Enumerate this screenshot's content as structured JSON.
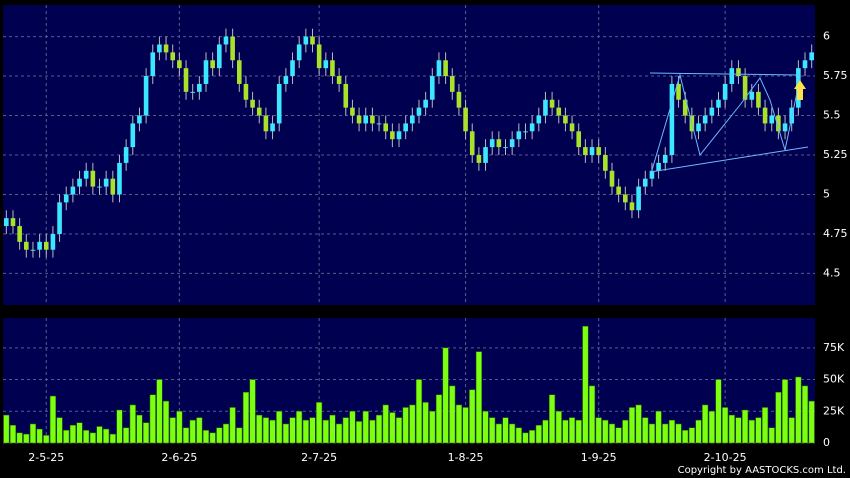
{
  "chart_data": [
    {
      "type": "candlestick",
      "up_color": "#3ce8ff",
      "down_color": "#a8e22a",
      "grid": true,
      "ylim": [
        4.3,
        6.2
      ],
      "yticks": [
        4.5,
        4.75,
        5,
        5.25,
        5.5,
        5.75,
        6
      ],
      "open": [
        4.8,
        4.85,
        4.8,
        4.7,
        4.65,
        4.65,
        4.7,
        4.65,
        4.75,
        4.95,
        5.0,
        5.05,
        5.1,
        5.15,
        5.05,
        5.05,
        5.1,
        5.0,
        5.2,
        5.3,
        5.45,
        5.5,
        5.75,
        5.9,
        5.95,
        5.9,
        5.85,
        5.8,
        5.65,
        5.65,
        5.7,
        5.85,
        5.8,
        5.95,
        6.0,
        5.85,
        5.7,
        5.6,
        5.55,
        5.5,
        5.4,
        5.45,
        5.7,
        5.75,
        5.85,
        5.95,
        6.0,
        5.95,
        5.8,
        5.85,
        5.75,
        5.7,
        5.55,
        5.5,
        5.45,
        5.5,
        5.45,
        5.45,
        5.4,
        5.35,
        5.4,
        5.45,
        5.5,
        5.55,
        5.6,
        5.75,
        5.85,
        5.75,
        5.65,
        5.55,
        5.4,
        5.25,
        5.2,
        5.3,
        5.35,
        5.3,
        5.3,
        5.35,
        5.4,
        5.4,
        5.45,
        5.5,
        5.6,
        5.55,
        5.5,
        5.45,
        5.4,
        5.3,
        5.25,
        5.3,
        5.25,
        5.15,
        5.05,
        5.0,
        4.95,
        4.9,
        5.05,
        5.1,
        5.15,
        5.2,
        5.25,
        5.7,
        5.6,
        5.5,
        5.4,
        5.45,
        5.5,
        5.55,
        5.6,
        5.7,
        5.8,
        5.75,
        5.6,
        5.65,
        5.55,
        5.45,
        5.5,
        5.4,
        5.45,
        5.55,
        5.8,
        5.85
      ],
      "high": [
        4.9,
        4.9,
        4.85,
        4.75,
        4.7,
        4.75,
        4.75,
        4.8,
        5.0,
        5.05,
        5.1,
        5.15,
        5.2,
        5.2,
        5.1,
        5.15,
        5.15,
        5.25,
        5.35,
        5.5,
        5.55,
        5.8,
        5.95,
        6.0,
        6.0,
        5.95,
        5.9,
        5.85,
        5.7,
        5.75,
        5.9,
        5.9,
        6.0,
        6.05,
        6.05,
        5.9,
        5.75,
        5.65,
        5.6,
        5.55,
        5.5,
        5.75,
        5.8,
        5.9,
        6.0,
        6.05,
        6.05,
        6.0,
        5.9,
        5.9,
        5.8,
        5.75,
        5.6,
        5.55,
        5.55,
        5.55,
        5.5,
        5.5,
        5.45,
        5.45,
        5.5,
        5.55,
        5.6,
        5.65,
        5.8,
        5.9,
        5.9,
        5.8,
        5.7,
        5.6,
        5.45,
        5.3,
        5.35,
        5.4,
        5.4,
        5.35,
        5.4,
        5.45,
        5.45,
        5.5,
        5.55,
        5.65,
        5.65,
        5.6,
        5.55,
        5.5,
        5.45,
        5.35,
        5.35,
        5.35,
        5.3,
        5.2,
        5.1,
        5.05,
        5.0,
        5.1,
        5.15,
        5.2,
        5.25,
        5.3,
        5.75,
        5.75,
        5.65,
        5.55,
        5.5,
        5.55,
        5.6,
        5.65,
        5.75,
        5.85,
        5.85,
        5.8,
        5.7,
        5.7,
        5.6,
        5.55,
        5.55,
        5.5,
        5.6,
        5.85,
        5.9,
        5.95
      ],
      "low": [
        4.75,
        4.75,
        4.65,
        4.6,
        4.6,
        4.6,
        4.6,
        4.6,
        4.7,
        4.9,
        4.95,
        5.0,
        5.05,
        5.0,
        5.0,
        5.0,
        4.95,
        4.95,
        5.15,
        5.25,
        5.4,
        5.45,
        5.7,
        5.85,
        5.85,
        5.8,
        5.75,
        5.6,
        5.6,
        5.6,
        5.65,
        5.75,
        5.75,
        5.9,
        5.8,
        5.65,
        5.55,
        5.5,
        5.45,
        5.35,
        5.35,
        5.4,
        5.65,
        5.7,
        5.8,
        5.9,
        5.9,
        5.75,
        5.75,
        5.7,
        5.65,
        5.5,
        5.45,
        5.4,
        5.4,
        5.4,
        5.4,
        5.35,
        5.3,
        5.3,
        5.35,
        5.4,
        5.45,
        5.5,
        5.55,
        5.7,
        5.7,
        5.6,
        5.5,
        5.35,
        5.2,
        5.15,
        5.15,
        5.25,
        5.25,
        5.25,
        5.25,
        5.3,
        5.35,
        5.35,
        5.4,
        5.45,
        5.5,
        5.45,
        5.4,
        5.35,
        5.25,
        5.2,
        5.2,
        5.2,
        5.1,
        5.0,
        4.95,
        4.9,
        4.85,
        4.85,
        5.0,
        5.05,
        5.1,
        5.15,
        5.2,
        5.55,
        5.45,
        5.35,
        5.35,
        5.4,
        5.45,
        5.5,
        5.55,
        5.65,
        5.7,
        5.55,
        5.55,
        5.5,
        5.4,
        5.4,
        5.35,
        5.35,
        5.4,
        5.5,
        5.75,
        5.8
      ],
      "close": [
        4.85,
        4.8,
        4.7,
        4.65,
        4.65,
        4.7,
        4.65,
        4.75,
        4.95,
        5.0,
        5.05,
        5.1,
        5.15,
        5.05,
        5.05,
        5.1,
        5.0,
        5.2,
        5.3,
        5.45,
        5.5,
        5.75,
        5.9,
        5.95,
        5.9,
        5.85,
        5.8,
        5.65,
        5.65,
        5.7,
        5.85,
        5.8,
        5.95,
        6.0,
        5.85,
        5.7,
        5.6,
        5.55,
        5.5,
        5.4,
        5.45,
        5.7,
        5.75,
        5.85,
        5.95,
        6.0,
        5.95,
        5.8,
        5.85,
        5.75,
        5.7,
        5.55,
        5.5,
        5.45,
        5.5,
        5.45,
        5.45,
        5.4,
        5.35,
        5.4,
        5.45,
        5.5,
        5.55,
        5.6,
        5.75,
        5.85,
        5.75,
        5.65,
        5.55,
        5.4,
        5.25,
        5.2,
        5.3,
        5.35,
        5.3,
        5.3,
        5.35,
        5.4,
        5.4,
        5.45,
        5.5,
        5.6,
        5.55,
        5.5,
        5.45,
        5.4,
        5.3,
        5.25,
        5.3,
        5.25,
        5.15,
        5.05,
        5.0,
        4.95,
        4.9,
        5.05,
        5.1,
        5.15,
        5.2,
        5.25,
        5.7,
        5.6,
        5.5,
        5.4,
        5.45,
        5.5,
        5.55,
        5.6,
        5.7,
        5.8,
        5.75,
        5.6,
        5.65,
        5.55,
        5.45,
        5.5,
        5.4,
        5.45,
        5.55,
        5.8,
        5.85,
        5.9
      ]
    },
    {
      "type": "bar",
      "color": "#7cff10",
      "grid": true,
      "ylim": [
        0,
        98500
      ],
      "yticks": [
        0,
        {
          "value": 25000,
          "label": "25K"
        },
        {
          "value": 50000,
          "label": "50K"
        },
        {
          "value": 75000,
          "label": "75K"
        }
      ],
      "xticks": [
        {
          "value": 6,
          "label": "2-5-25"
        },
        {
          "value": 26,
          "label": "2-6-25"
        },
        {
          "value": 47,
          "label": "2-7-25"
        },
        {
          "value": 69,
          "label": "1-8-25"
        },
        {
          "value": 89,
          "label": "1-9-25"
        },
        {
          "value": 108,
          "label": "2-10-25"
        }
      ],
      "values": [
        22000,
        14000,
        8000,
        7000,
        15000,
        11000,
        6000,
        37000,
        20000,
        10000,
        14000,
        16000,
        10000,
        8000,
        13000,
        11000,
        7000,
        26000,
        12000,
        30000,
        22000,
        16000,
        38000,
        50000,
        33000,
        20000,
        25000,
        12000,
        18000,
        20000,
        10000,
        8000,
        12000,
        15000,
        28000,
        12000,
        40000,
        50000,
        22000,
        20000,
        18000,
        25000,
        15000,
        20000,
        25000,
        18000,
        20000,
        32000,
        18000,
        22000,
        15000,
        20000,
        25000,
        17000,
        25000,
        18000,
        22000,
        30000,
        24000,
        20000,
        28000,
        30000,
        50000,
        32000,
        25000,
        38000,
        75000,
        45000,
        30000,
        28000,
        42000,
        72000,
        25000,
        20000,
        15000,
        20000,
        15000,
        12000,
        8000,
        10000,
        14000,
        18000,
        38000,
        25000,
        18000,
        20000,
        18000,
        92000,
        45000,
        20000,
        18000,
        15000,
        12000,
        18000,
        28000,
        30000,
        20000,
        15000,
        25000,
        15000,
        18000,
        15000,
        10000,
        12000,
        18000,
        30000,
        25000,
        50000,
        28000,
        22000,
        20000,
        26000,
        18000,
        20000,
        28000,
        12000,
        40000,
        50000,
        20000,
        52000,
        45000,
        33000
      ]
    }
  ],
  "copyright": "Copyright by AASTOCKS.com Ltd."
}
